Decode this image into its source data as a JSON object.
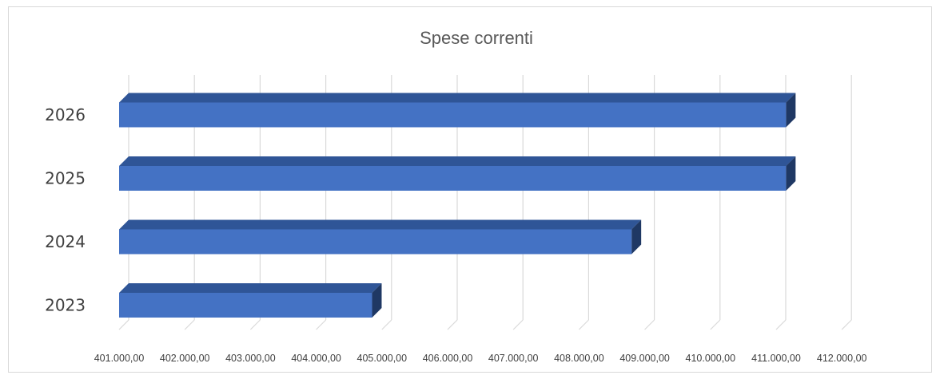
{
  "chart_data": {
    "type": "bar",
    "orientation": "horizontal",
    "title": "Spese correnti",
    "categories": [
      "2023",
      "2024",
      "2025",
      "2026"
    ],
    "series": [
      {
        "values": [
          404850,
          408800,
          411150,
          411150
        ]
      }
    ],
    "xlim": [
      401000,
      412000
    ],
    "x_ticks": [
      401000,
      402000,
      403000,
      404000,
      405000,
      406000,
      407000,
      408000,
      409000,
      410000,
      411000,
      412000
    ],
    "x_tick_labels": [
      "401.000,00",
      "402.000,00",
      "403.000,00",
      "404.000,00",
      "405.000,00",
      "406.000,00",
      "407.000,00",
      "408.000,00",
      "409.000,00",
      "410.000,00",
      "411.000,00",
      "412.000,00"
    ],
    "xlabel": "",
    "ylabel": "",
    "grid": true,
    "legend": "none",
    "style": "3d",
    "colors": {
      "bar_front": "#4472c4",
      "bar_top": "#2f5597",
      "bar_side": "#1f3864",
      "grid": "#d9d9d9"
    }
  }
}
